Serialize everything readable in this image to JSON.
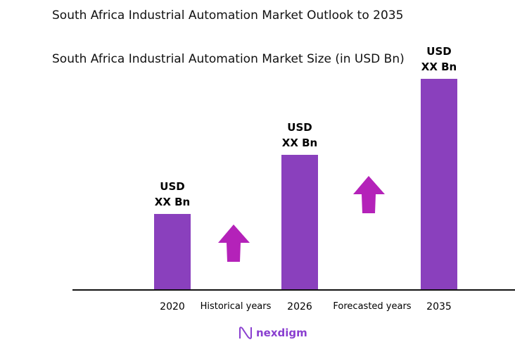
{
  "title": "South Africa Industrial Automation Market Outlook to 2035",
  "chart_data": {
    "type": "bar",
    "title": "South Africa Industrial Automation Market Size (in USD Bn)",
    "categories": [
      "2020",
      "2026",
      "2035"
    ],
    "relative_values": [
      0.36,
      0.64,
      1.0
    ],
    "data_labels": [
      [
        "USD",
        "XX Bn"
      ],
      [
        "USD",
        "XX Bn"
      ],
      [
        "USD",
        "XX Bn"
      ]
    ],
    "period_labels": [
      "Historical years",
      "Forecasted years"
    ],
    "xlabel": "",
    "ylabel": "",
    "grid": false,
    "bar_color": "#8a40bd",
    "arrow_color": "#b422b9"
  },
  "logo": {
    "text": "nexdigm",
    "color": "#8a3fd0"
  }
}
